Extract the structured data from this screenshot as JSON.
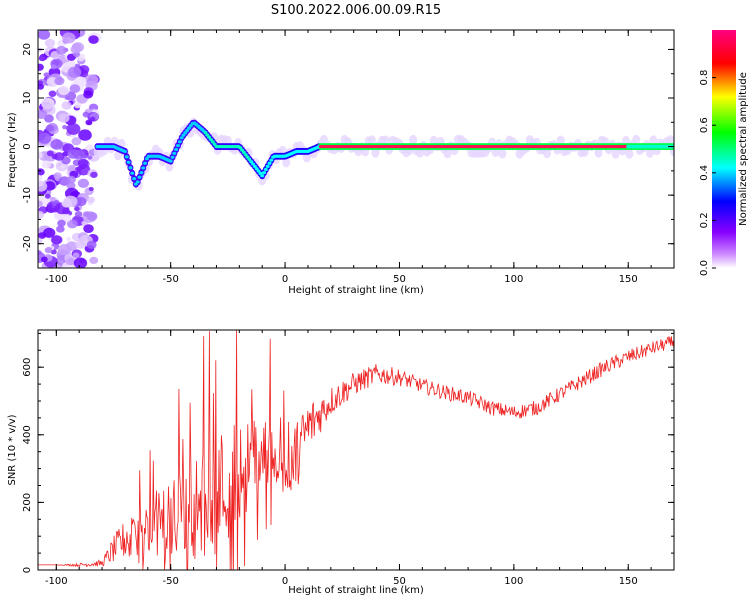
{
  "title": "S100.2022.006.00.09.R15",
  "chart_data": [
    {
      "type": "heatmap",
      "xlabel": "Height of straight line (km)",
      "ylabel": "Frequency (Hz)",
      "xlim": [
        -108,
        170
      ],
      "ylim": [
        -25,
        24
      ],
      "x_ticks": [
        "-100",
        "-50",
        "0",
        "50",
        "100",
        "150"
      ],
      "y_ticks": [
        "-20",
        "-10",
        "0",
        "10",
        "20"
      ],
      "colorbar": {
        "label": "Normalized spectral amplitude",
        "ticks": [
          "0.0",
          "0.2",
          "0.4",
          "0.6",
          "0.8"
        ],
        "range": [
          0,
          1
        ],
        "colormap": [
          "#ffffff",
          "#8800ff",
          "#0000ff",
          "#00ffff",
          "#00ff00",
          "#ffff00",
          "#ff0000",
          "#ff0080"
        ]
      },
      "ridge": {
        "x": [
          -82,
          -75,
          -70,
          -65,
          -60,
          -55,
          -50,
          -45,
          -40,
          -35,
          -30,
          -25,
          -20,
          -15,
          -10,
          -5,
          0,
          5,
          10,
          15,
          20,
          30,
          50,
          100,
          150,
          170
        ],
        "y": [
          0,
          0,
          -1,
          -8,
          -2,
          -2,
          -3,
          2,
          5,
          3,
          0,
          0,
          0,
          -3,
          -6,
          -2,
          -2,
          -1,
          -1,
          0,
          0,
          0,
          0,
          0,
          0,
          0
        ]
      }
    },
    {
      "type": "line",
      "xlabel": "Height of straight line (km)",
      "ylabel": "SNR (10 * v/v)",
      "xlim": [
        -108,
        170
      ],
      "ylim": [
        0,
        710
      ],
      "x_ticks": [
        "-100",
        "-50",
        "0",
        "50",
        "100",
        "150"
      ],
      "y_ticks": [
        "0",
        "200",
        "400",
        "600"
      ],
      "series": [
        {
          "color": "#ee2222",
          "x": [
            -108,
            -100,
            -90,
            -80,
            -75,
            -70,
            -65,
            -60,
            -55,
            -50,
            -45,
            -40,
            -35,
            -30,
            -25,
            -20,
            -15,
            -10,
            -5,
            0,
            5,
            10,
            15,
            20,
            30,
            40,
            50,
            60,
            70,
            80,
            90,
            100,
            110,
            120,
            130,
            140,
            150,
            160,
            170
          ],
          "y": [
            15,
            15,
            15,
            20,
            60,
            90,
            90,
            110,
            140,
            150,
            160,
            180,
            190,
            230,
            260,
            290,
            320,
            350,
            360,
            330,
            340,
            420,
            460,
            500,
            550,
            580,
            570,
            545,
            525,
            510,
            480,
            465,
            480,
            520,
            560,
            600,
            630,
            655,
            675
          ],
          "noise": [
            0,
            0,
            5,
            10,
            40,
            60,
            70,
            90,
            110,
            120,
            130,
            150,
            170,
            180,
            180,
            160,
            130,
            120,
            110,
            110,
            100,
            90,
            60,
            45,
            35,
            30,
            25,
            22,
            22,
            22,
            22,
            22,
            22,
            22,
            22,
            22,
            22,
            20,
            20
          ]
        }
      ]
    }
  ]
}
